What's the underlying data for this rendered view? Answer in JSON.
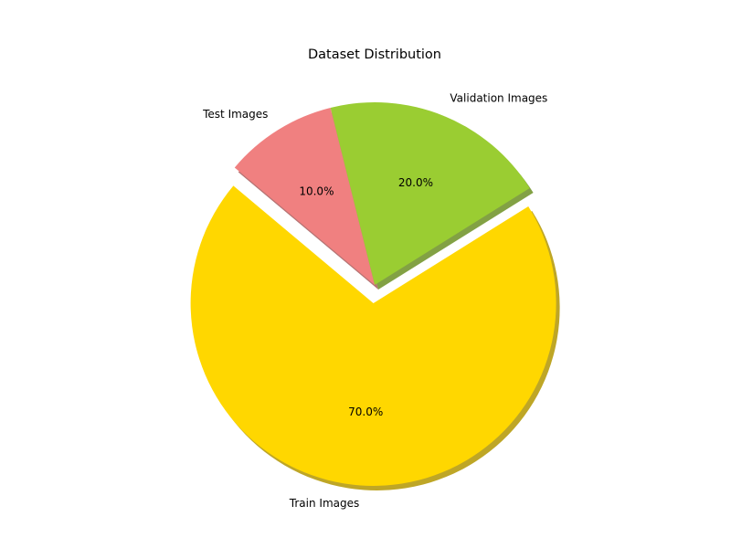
{
  "chart_data": {
    "type": "pie",
    "title": "Dataset Distribution",
    "categories": [
      "Train Images",
      "Validation Images",
      "Test Images"
    ],
    "values": [
      70,
      20,
      10
    ],
    "value_labels": [
      "70.0%",
      "20.0%",
      "10.0%"
    ],
    "colors": [
      "#ffd700",
      "#9acd32",
      "#f08080"
    ],
    "exploded": [
      true,
      false,
      false
    ],
    "shadow": true,
    "start_angle_deg": 140,
    "direction": "counterclockwise"
  }
}
